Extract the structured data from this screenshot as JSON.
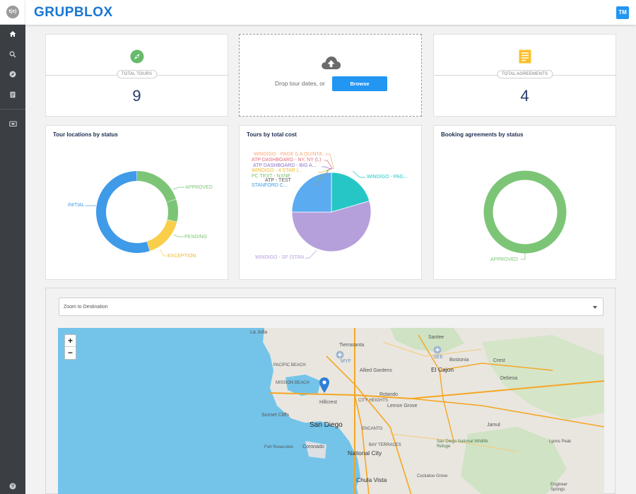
{
  "app": {
    "brand": "GRUPBLOX",
    "logo_text": "t(e)",
    "user_initials": "TM"
  },
  "sidebar": {
    "items": [
      {
        "name": "home",
        "icon": "home-icon"
      },
      {
        "name": "search",
        "icon": "search-icon"
      },
      {
        "name": "tours",
        "icon": "compass-icon"
      },
      {
        "name": "agreements",
        "icon": "document-icon"
      },
      {
        "name": "tickets",
        "icon": "ticket-icon"
      }
    ],
    "help_icon": "help-icon"
  },
  "stats": {
    "tours": {
      "label": "TOTAL TOURS",
      "value": "9",
      "icon": "compass-icon",
      "color": "#66bb6a"
    },
    "agreements": {
      "label": "TOTAL AGREEMENTS",
      "value": "4",
      "icon": "document-icon",
      "color": "#fbc02d"
    }
  },
  "upload": {
    "text": "Drop tour dates, or",
    "button": "Browse",
    "icon": "cloud-upload-icon"
  },
  "charts": {
    "locations": {
      "title": "Tour locations by status",
      "type": "donut",
      "segments": [
        {
          "label": "APPROVED",
          "fraction": 0.2,
          "color": "#7cc576"
        },
        {
          "label": "PENDING",
          "fraction": 0.09,
          "color": "#7cc576"
        },
        {
          "label": "EXCEPTION",
          "fraction": 0.16,
          "color": "#f9cf4a"
        },
        {
          "label": "INITIAL",
          "fraction": 0.55,
          "color": "#3f9ae8"
        }
      ]
    },
    "cost": {
      "title": "Tours by total cost",
      "type": "pie",
      "segments": [
        {
          "label": "WINDIGO - PAG...",
          "fraction": 0.205,
          "color": "#26c6c6"
        },
        {
          "label": "WINDIGO - SF (STAN...",
          "fraction": 0.545,
          "color": "#b5a0dc"
        },
        {
          "label": "STANFORD C...",
          "fraction": 0.25,
          "color": "#5aabf0"
        }
      ],
      "callouts": [
        {
          "label": "WINDIGO - PAGE (LA QUINTA ...",
          "color": "#f4a97a"
        },
        {
          "label": "ATP DASHBOARD - NY, NY (L)",
          "color": "#e46a7a"
        },
        {
          "label": "ATP DASHBOARD - BIG A...",
          "color": "#8b72c9"
        },
        {
          "label": "WINDIGO - 4 STAR (...",
          "color": "#f0b82e"
        },
        {
          "label": "PC TEST - NXNE",
          "color": "#7cbf6a"
        },
        {
          "label": "ATP - TEST",
          "color": "#555555"
        },
        {
          "label": "STANFORD C...",
          "color": "#3f9ae8"
        }
      ]
    },
    "agreements": {
      "title": "Booking agreements by status",
      "type": "donut",
      "segments": [
        {
          "label": "APPROVED",
          "fraction": 1.0,
          "color": "#7cc576"
        }
      ]
    }
  },
  "map": {
    "dropdown": "Zoom to Destination",
    "zoom_in": "+",
    "zoom_out": "−",
    "labels": {
      "la_jolla": "La Jolla",
      "tierrasanta": "Tierrasanta",
      "santee": "Santee",
      "allied_gardens": "Allied Gardens",
      "mission_beach": "MISSION BEACH",
      "pacific_beach": "PACIFIC BEACH",
      "el_cajon": "El Cajon",
      "bostonia": "Bostonia",
      "crest": "Crest",
      "debesa": "Debesa",
      "rolando": "Rolando",
      "hillcrest": "Hillcrest",
      "city_heights": "CITY HEIGHTS",
      "lemon_grove": "Lemon Grove",
      "sunset_cliffs": "Sunset Cliffs",
      "san_diego": "San Diego",
      "jamul": "Jamul",
      "fort_rosecrans": "Fort Rosecrans",
      "coronado": "Coronado",
      "encanto": "ENCANTO",
      "national_city": "National City",
      "bay_terraces": "BAY TERRACES",
      "refuge": "San Diego National Wildlife Refuge",
      "lyons_peak": "Lyons Peak",
      "chula_vista": "Chula Vista",
      "cockatoo_grove": "Cockatoo Grove",
      "engineer_springs": "Engineer Springs",
      "mount_helix": "Mount Helix",
      "myf": "MYF",
      "see": "SEE"
    }
  }
}
